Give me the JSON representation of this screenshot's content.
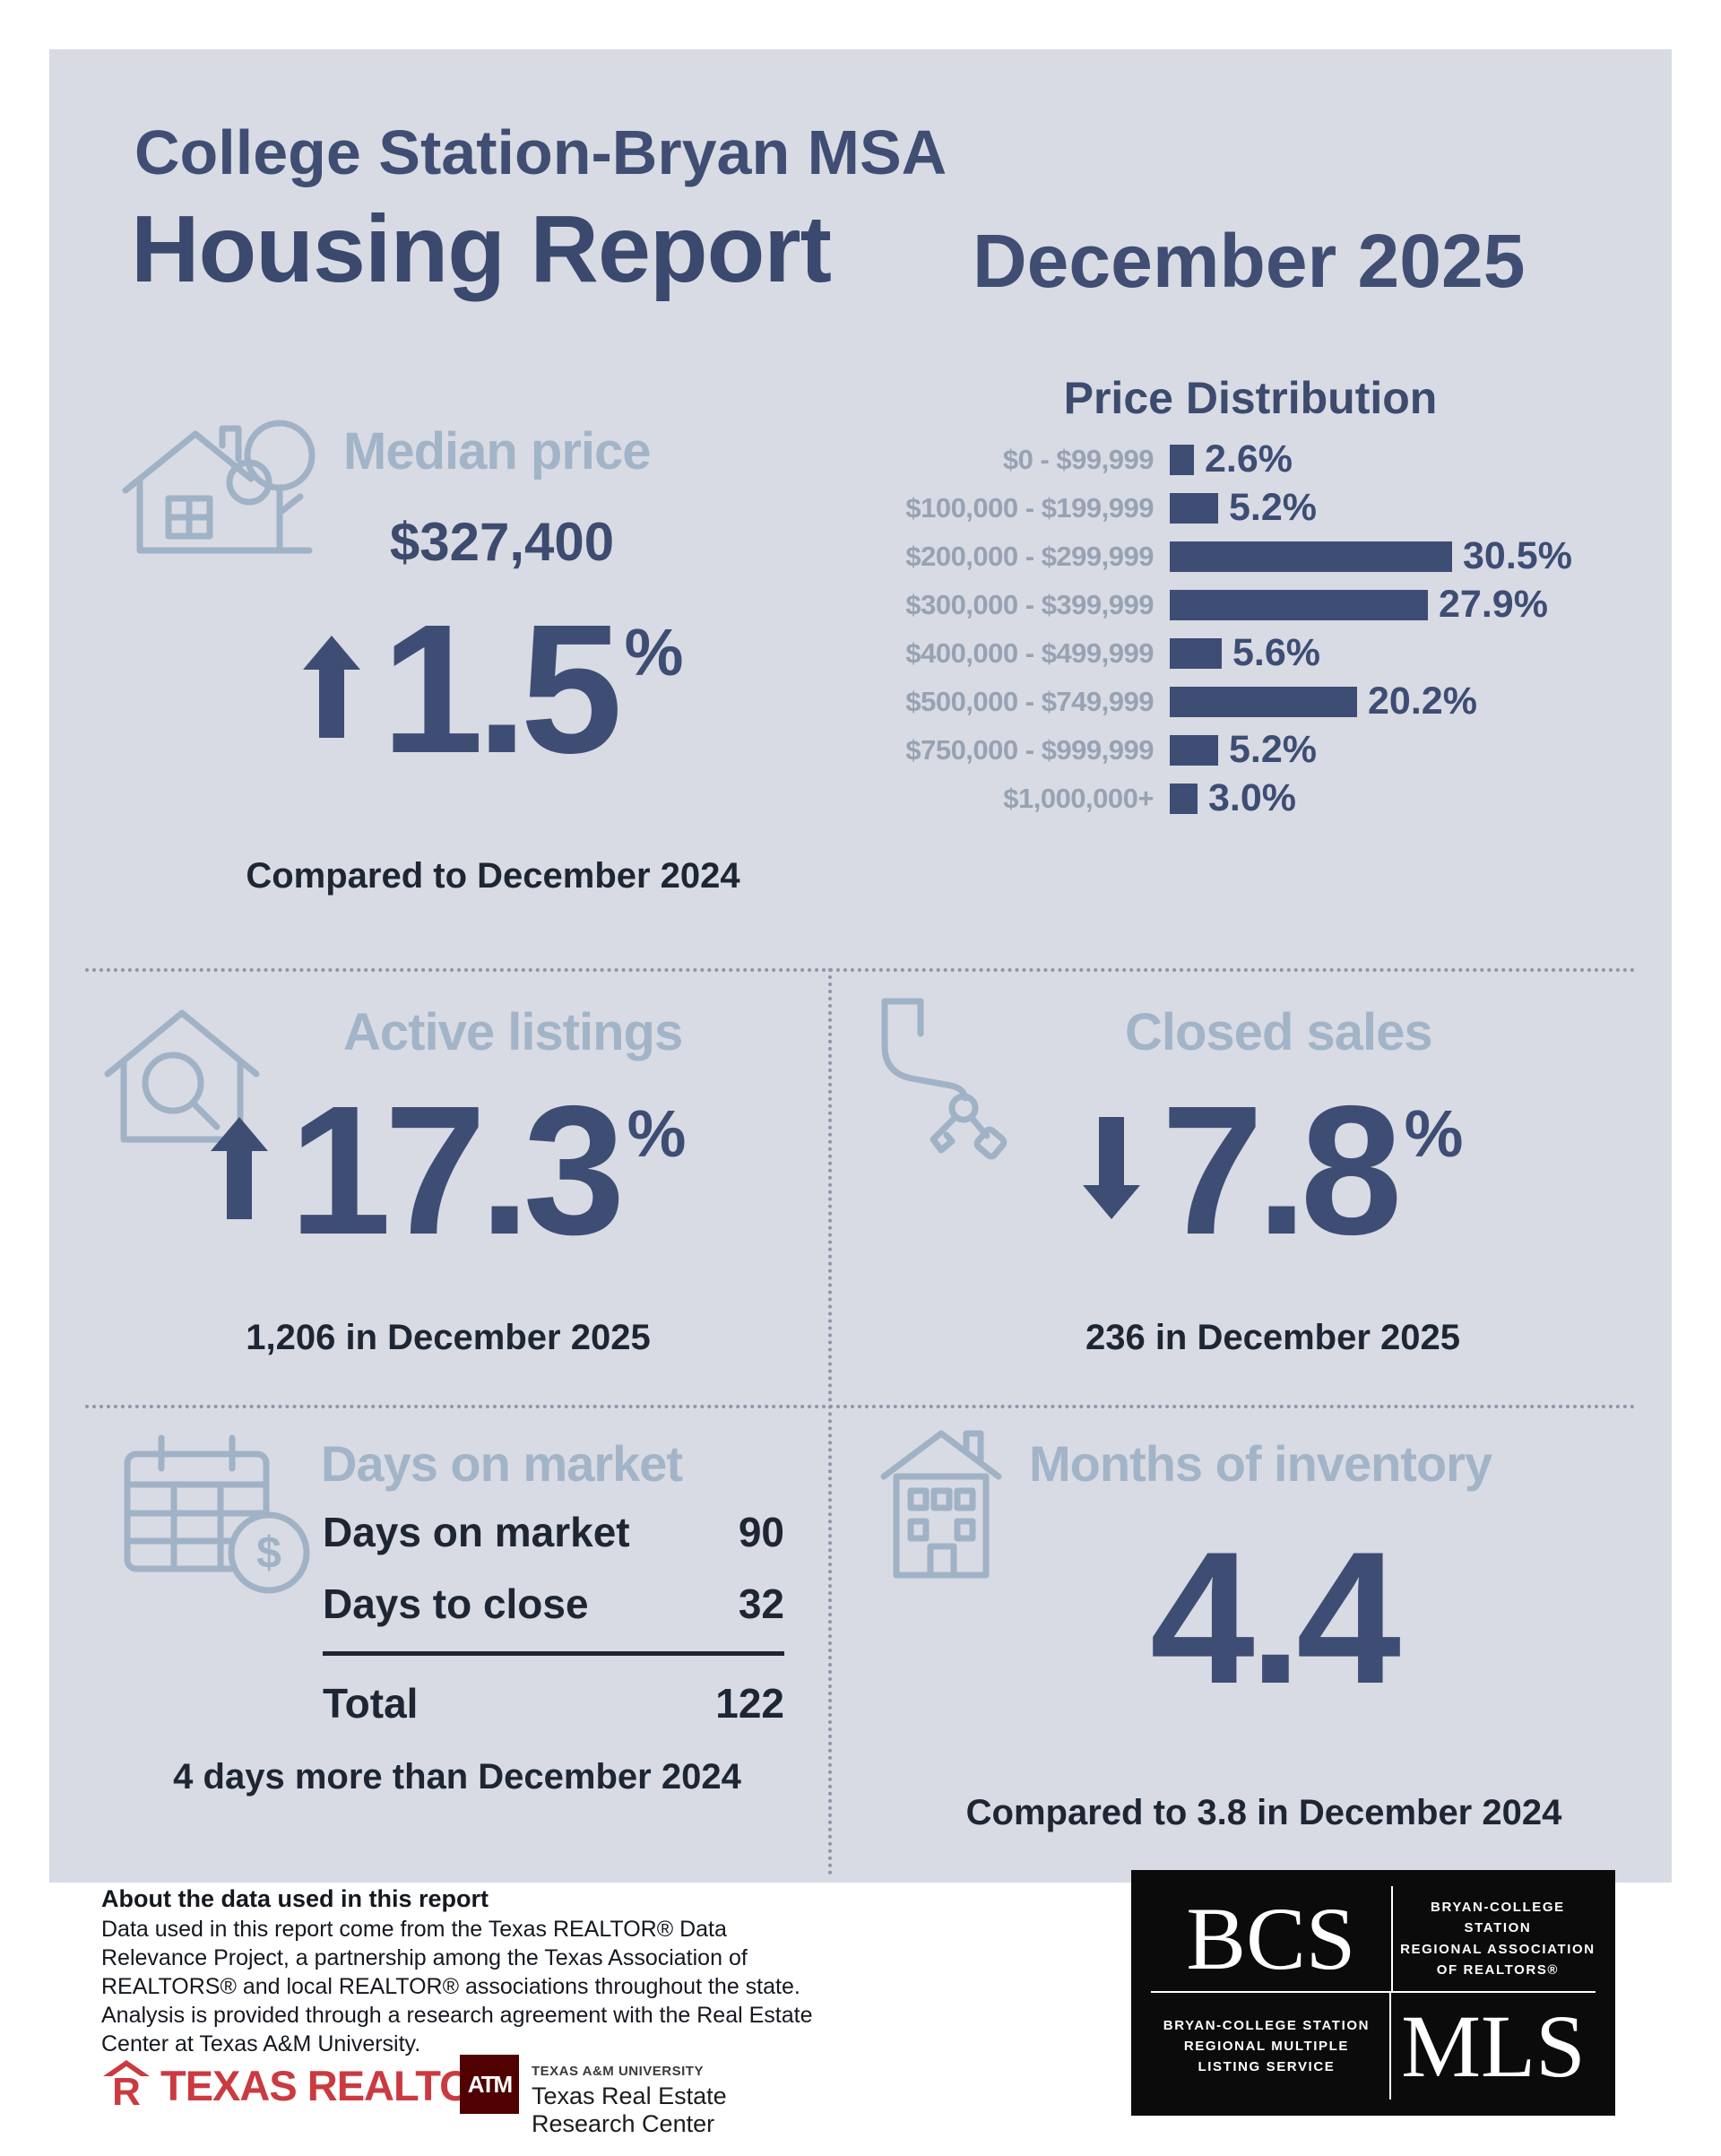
{
  "colors": {
    "panel_bg": "#d8dbe4",
    "navy": "#3e4d74",
    "heading_blue": "#a2b4c8",
    "label_gray": "#97a2b3",
    "dark_text": "#1e2633",
    "realtor_red": "#cb3a40",
    "tamu_maroon": "#500000"
  },
  "header": {
    "region": "College Station-Bryan MSA",
    "title": "Housing Report",
    "date": "December 2025"
  },
  "median_price": {
    "label": "Median price",
    "value": "$327,400",
    "direction": "up",
    "change_value": "1.5",
    "percent_symbol": "%",
    "comparison": "Compared to December 2024"
  },
  "chart_data": {
    "type": "bar",
    "title": "Price Distribution",
    "orientation": "horizontal",
    "categories": [
      "$0 - $99,999",
      "$100,000 - $199,999",
      "$200,000 - $299,999",
      "$300,000 - $399,999",
      "$400,000 - $499,999",
      "$500,000 - $749,999",
      "$750,000 - $999,999",
      "$1,000,000+"
    ],
    "values": [
      2.6,
      5.2,
      30.5,
      27.9,
      5.6,
      20.2,
      5.2,
      3.0
    ],
    "value_labels": [
      "2.6%",
      "5.2%",
      "30.5%",
      "27.9%",
      "5.6%",
      "20.2%",
      "5.2%",
      "3.0%"
    ],
    "xlim": [
      0,
      32
    ],
    "bar_color": "#3e4d74",
    "grid": false,
    "legend": false
  },
  "active_listings": {
    "label": "Active listings",
    "direction": "up",
    "change_value": "17.3",
    "percent_symbol": "%",
    "detail": "1,206 in December 2025"
  },
  "closed_sales": {
    "label": "Closed sales",
    "direction": "down",
    "change_value": "7.8",
    "percent_symbol": "%",
    "detail": "236 in December 2025"
  },
  "days_on_market": {
    "label": "Days on market",
    "rows": [
      {
        "label": "Days on market",
        "value": "90"
      },
      {
        "label": "Days to close",
        "value": "32"
      }
    ],
    "total_label": "Total",
    "total_value": "122",
    "note": "4 days more than December 2024"
  },
  "months_of_inventory": {
    "label": "Months of inventory",
    "value": "4.4",
    "note": "Compared to 3.8 in December 2024"
  },
  "about": {
    "title": "About the data used in this report",
    "body": "Data used in this report come from the Texas REALTOR® Data Relevance Project, a partnership among the Texas Association of REALTORS® and local REALTOR® associations throughout the state. Analysis is provided through a research agreement with the Real Estate Center at Texas A&M University."
  },
  "footer_logos": {
    "texas_realtors": "TEXAS REALTORS®",
    "tamu_line1": "TEXAS A&M UNIVERSITY",
    "tamu_line2": "Texas Real Estate Research Center",
    "tamu_mark": "ATM",
    "bcs": "BCS",
    "assoc_lines": [
      "BRYAN-COLLEGE STATION",
      "REGIONAL ASSOCIATION",
      "OF REALTORS®"
    ],
    "mls": "MLS",
    "mls_lines": [
      "BRYAN-COLLEGE STATION",
      "REGIONAL MULTIPLE",
      "LISTING SERVICE"
    ]
  }
}
